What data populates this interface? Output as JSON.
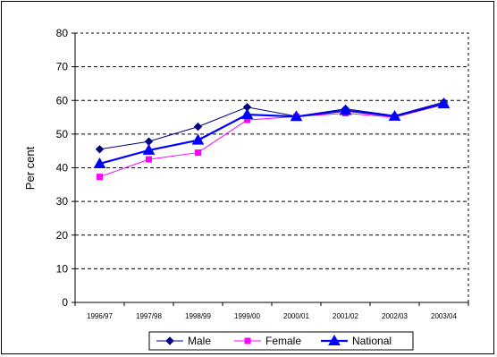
{
  "chart_data": {
    "type": "line",
    "title": "",
    "xlabel": "",
    "ylabel": "Per cent",
    "ylim": [
      0,
      80
    ],
    "yticks": [
      0,
      10,
      20,
      30,
      40,
      50,
      60,
      70,
      80
    ],
    "grid": true,
    "legend_position": "bottom",
    "categories": [
      "1996/97",
      "1997/98",
      "1998/99",
      "1999/00",
      "2000/01",
      "2001/02",
      "2002/03",
      "2003/04"
    ],
    "series": [
      {
        "name": "Male",
        "color": "#000080",
        "marker": "diamond",
        "values": [
          45.5,
          47.8,
          52.2,
          58.0,
          55.3,
          57.5,
          55.5,
          59.5
        ]
      },
      {
        "name": "Female",
        "color": "#ff00ff",
        "marker": "square",
        "values": [
          37.3,
          42.5,
          44.5,
          54.2,
          55.2,
          56.2,
          55.0,
          58.8
        ]
      },
      {
        "name": "National",
        "color": "#0000ff",
        "marker": "triangle",
        "values": [
          41.2,
          45.2,
          48.2,
          55.8,
          55.2,
          57.0,
          55.3,
          59.0
        ]
      }
    ]
  }
}
